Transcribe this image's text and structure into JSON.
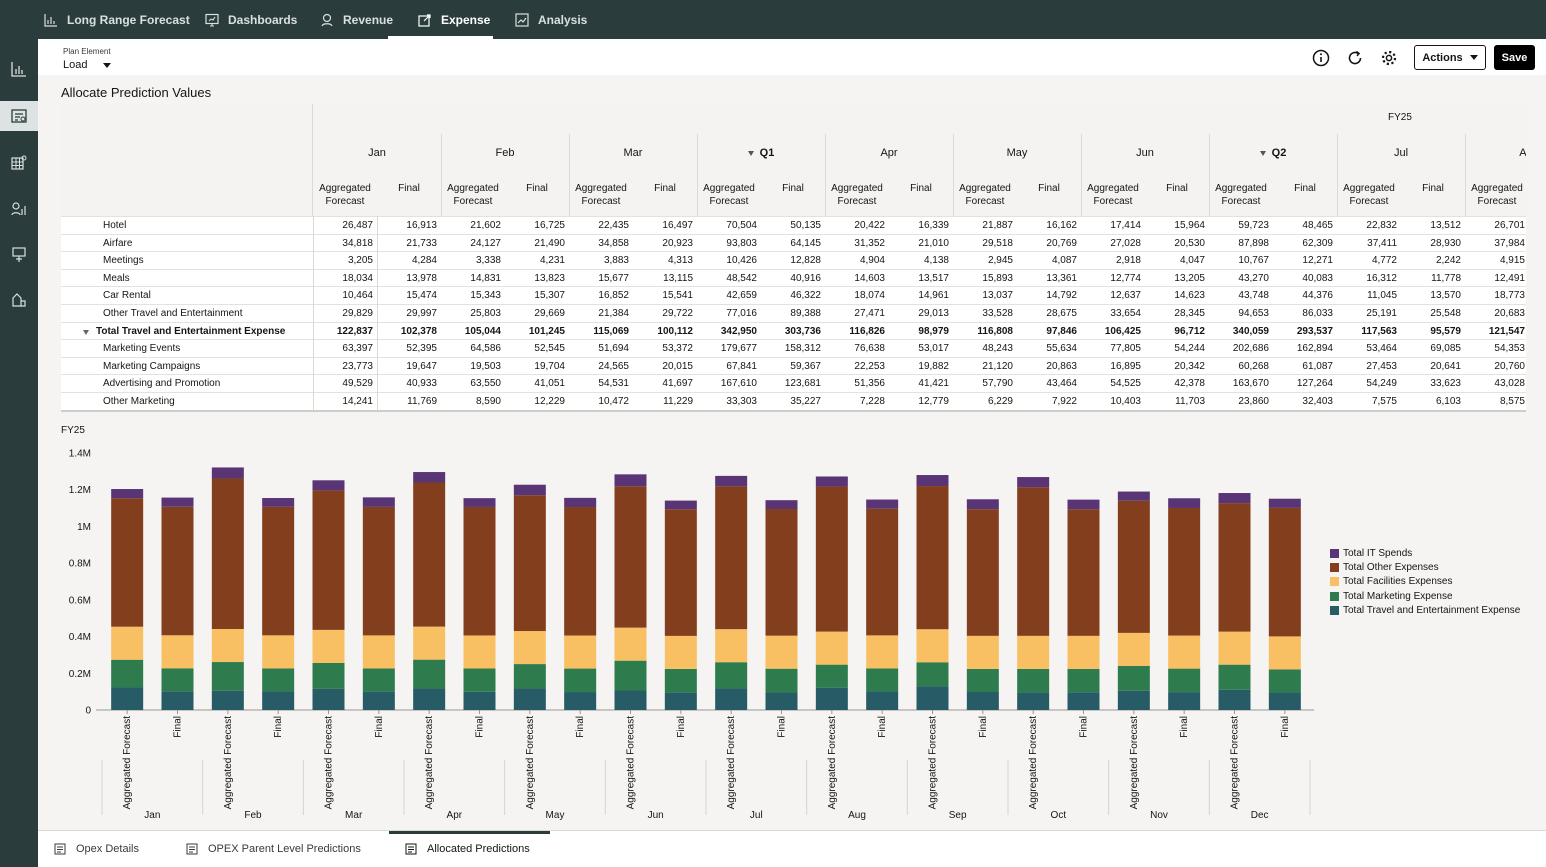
{
  "nav": {
    "tabs": [
      {
        "label": "Long Range Forecast",
        "icon": "chart-icon"
      },
      {
        "label": "Dashboards",
        "icon": "dashboard-icon"
      },
      {
        "label": "Revenue",
        "icon": "revenue-icon"
      },
      {
        "label": "Expense",
        "icon": "expense-icon"
      },
      {
        "label": "Analysis",
        "icon": "analysis-icon"
      }
    ],
    "active_tab": "Expense"
  },
  "leftnav": {
    "icons": [
      "chart-icon",
      "expense-icon",
      "grid-icon",
      "analysis-icon",
      "pin-icon",
      "plan-icon"
    ],
    "active_index": 1
  },
  "toolbar": {
    "plan_element_label": "Plan Element",
    "plan_element_value": "Load",
    "actions_label": "Actions",
    "save_label": "Save"
  },
  "section_title": "Allocate Prediction Values",
  "grid": {
    "year": "FY25",
    "periods": [
      "Jan",
      "Feb",
      "Mar",
      "Q1",
      "Apr",
      "May",
      "Jun",
      "Q2",
      "Jul",
      "Aug"
    ],
    "last_period_visible": "A",
    "col_labels": {
      "agg": "Aggregated Forecast",
      "fin": "Final"
    },
    "rows": [
      {
        "label": "Hotel",
        "total": false,
        "values": [
          "26,487",
          "16,913",
          "21,602",
          "16,725",
          "22,435",
          "16,497",
          "70,504",
          "50,135",
          "20,422",
          "16,339",
          "21,887",
          "16,162",
          "17,414",
          "15,964",
          "59,723",
          "48,465",
          "22,832",
          "13,512",
          "26,701"
        ]
      },
      {
        "label": "Airfare",
        "total": false,
        "values": [
          "34,818",
          "21,733",
          "24,127",
          "21,490",
          "34,858",
          "20,923",
          "93,803",
          "64,145",
          "31,352",
          "21,010",
          "29,518",
          "20,769",
          "27,028",
          "20,530",
          "87,898",
          "62,309",
          "37,411",
          "28,930",
          "37,984"
        ]
      },
      {
        "label": "Meetings",
        "total": false,
        "values": [
          "3,205",
          "4,284",
          "3,338",
          "4,231",
          "3,883",
          "4,313",
          "10,426",
          "12,828",
          "4,904",
          "4,138",
          "2,945",
          "4,087",
          "2,918",
          "4,047",
          "10,767",
          "12,271",
          "4,772",
          "2,242",
          "4,915"
        ]
      },
      {
        "label": "Meals",
        "total": false,
        "values": [
          "18,034",
          "13,978",
          "14,831",
          "13,823",
          "15,677",
          "13,115",
          "48,542",
          "40,916",
          "14,603",
          "13,517",
          "15,893",
          "13,361",
          "12,774",
          "13,205",
          "43,270",
          "40,083",
          "16,312",
          "11,778",
          "12,491"
        ]
      },
      {
        "label": "Car Rental",
        "total": false,
        "values": [
          "10,464",
          "15,474",
          "15,343",
          "15,307",
          "16,852",
          "15,541",
          "42,659",
          "46,322",
          "18,074",
          "14,961",
          "13,037",
          "14,792",
          "12,637",
          "14,623",
          "43,748",
          "44,376",
          "11,045",
          "13,570",
          "18,773"
        ]
      },
      {
        "label": "Other Travel and Entertainment",
        "total": false,
        "values": [
          "29,829",
          "29,997",
          "25,803",
          "29,669",
          "21,384",
          "29,722",
          "77,016",
          "89,388",
          "27,471",
          "29,013",
          "33,528",
          "28,675",
          "33,654",
          "28,345",
          "94,653",
          "86,033",
          "25,191",
          "25,548",
          "20,683"
        ]
      },
      {
        "label": "Total Travel and Entertainment Expense",
        "total": true,
        "values": [
          "122,837",
          "102,378",
          "105,044",
          "101,245",
          "115,069",
          "100,112",
          "342,950",
          "303,736",
          "116,826",
          "98,979",
          "116,808",
          "97,846",
          "106,425",
          "96,712",
          "340,059",
          "293,537",
          "117,563",
          "95,579",
          "121,547"
        ]
      },
      {
        "label": "Marketing Events",
        "total": false,
        "values": [
          "63,397",
          "52,395",
          "64,586",
          "52,545",
          "51,694",
          "53,372",
          "179,677",
          "158,312",
          "76,638",
          "53,017",
          "48,243",
          "55,634",
          "77,805",
          "54,244",
          "202,686",
          "162,894",
          "53,464",
          "69,085",
          "54,353"
        ]
      },
      {
        "label": "Marketing Campaigns",
        "total": false,
        "values": [
          "23,773",
          "19,647",
          "19,503",
          "19,704",
          "24,565",
          "20,015",
          "67,841",
          "59,367",
          "22,253",
          "19,882",
          "21,120",
          "20,863",
          "16,895",
          "20,342",
          "60,268",
          "61,087",
          "27,453",
          "20,641",
          "20,760"
        ]
      },
      {
        "label": "Advertising and Promotion",
        "total": false,
        "values": [
          "49,529",
          "40,933",
          "63,550",
          "41,051",
          "54,531",
          "41,697",
          "167,610",
          "123,681",
          "51,356",
          "41,421",
          "57,790",
          "43,464",
          "54,525",
          "42,378",
          "163,670",
          "127,264",
          "54,249",
          "33,623",
          "43,028"
        ]
      },
      {
        "label": "Other Marketing",
        "total": false,
        "values": [
          "14,241",
          "11,769",
          "8,590",
          "12,229",
          "10,472",
          "11,229",
          "33,303",
          "35,227",
          "7,228",
          "12,779",
          "6,229",
          "7,922",
          "10,403",
          "11,703",
          "23,860",
          "32,403",
          "7,575",
          "6,103",
          "8,575"
        ]
      }
    ]
  },
  "chart_title": "FY25",
  "chart_data": {
    "type": "bar",
    "stacked": true,
    "title": "FY25",
    "months": [
      "Jan",
      "Feb",
      "Mar",
      "Apr",
      "May",
      "Jun",
      "Jul",
      "Aug",
      "Sep",
      "Oct",
      "Nov",
      "Dec"
    ],
    "bar_labels": [
      "Aggregated Forecast",
      "Final"
    ],
    "y_ticks": [
      "0",
      "0.2M",
      "0.4M",
      "0.6M",
      "0.8M",
      "1M",
      "1.2M",
      "1.4M"
    ],
    "ylim": [
      0,
      1400000
    ],
    "colors": {
      "Total IT Spends": "#5a3575",
      "Total Other Expenses": "#833f1d",
      "Total Facilities Expenses": "#f8c062",
      "Total Marketing Expense": "#2e7b4e",
      "Total Travel and Entertainment Expense": "#275b66"
    },
    "legend": [
      "Total IT Spends",
      "Total Other Expenses",
      "Total Facilities Expenses",
      "Total Marketing Expense",
      "Total Travel and Entertainment Expense"
    ],
    "series": [
      {
        "name": "Total Travel and Entertainment Expense",
        "values": [
          122837,
          102378,
          105044,
          101245,
          115069,
          100112,
          116826,
          98979,
          116808,
          97846,
          106425,
          96712,
          117563,
          95579,
          121547,
          100500,
          130000,
          98000,
          96000,
          97000,
          105000,
          97500,
          110000,
          95000
        ]
      },
      {
        "name": "Total Marketing Expense",
        "values": [
          150940,
          124744,
          156229,
          125529,
          141262,
          126313,
          157475,
          127099,
          133382,
          127883,
          162328,
          127000,
          142741,
          129416,
          125546,
          126000,
          130000,
          126000,
          128000,
          127000,
          135000,
          128000,
          137000,
          126000
        ]
      },
      {
        "name": "Total Facilities Expenses",
        "values": [
          180000,
          180000,
          180000,
          180000,
          180000,
          180000,
          180000,
          180000,
          180000,
          180000,
          180000,
          180000,
          180000,
          180000,
          180000,
          180000,
          180000,
          180000,
          180000,
          180000,
          180000,
          180000,
          180000,
          180000
        ]
      },
      {
        "name": "Total Other Expenses",
        "values": [
          700000,
          700000,
          820000,
          700000,
          760000,
          700000,
          785000,
          700000,
          740000,
          700000,
          770000,
          690000,
          778000,
          690000,
          790000,
          690000,
          780000,
          690000,
          810000,
          690000,
          720000,
          695000,
          700000,
          700000
        ]
      },
      {
        "name": "Total IT Spends",
        "values": [
          50000,
          50000,
          60000,
          48000,
          55000,
          52000,
          57000,
          48000,
          57000,
          50000,
          65000,
          47000,
          57000,
          48000,
          55000,
          50000,
          60000,
          54000,
          55000,
          52000,
          50000,
          53000,
          55000,
          50000
        ]
      }
    ]
  },
  "bottom_tabs": [
    {
      "label": "Opex Details",
      "active": false
    },
    {
      "label": "OPEX Parent Level Predictions",
      "active": false
    },
    {
      "label": "Allocated Predictions",
      "active": true
    }
  ]
}
